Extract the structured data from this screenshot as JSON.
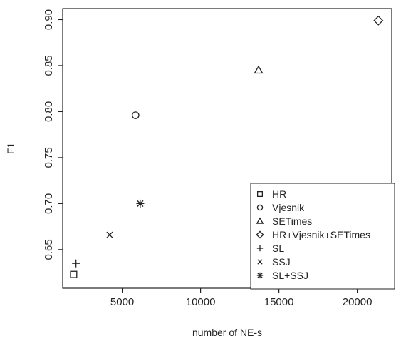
{
  "chart_data": {
    "type": "scatter",
    "title": "",
    "xlabel": "number of NE-s",
    "ylabel": "F1",
    "xlim": [
      1200,
      22200
    ],
    "ylim": [
      0.608,
      0.912
    ],
    "xticks": [
      5000,
      10000,
      15000,
      20000
    ],
    "xtick_labels": [
      "5000",
      "10000",
      "15000",
      "20000"
    ],
    "yticks": [
      0.65,
      0.7,
      0.75,
      0.8,
      0.85,
      0.9
    ],
    "ytick_labels": [
      "0.65",
      "0.70",
      "0.75",
      "0.80",
      "0.85",
      "0.90"
    ],
    "legend_position": "bottom-right",
    "grid": false,
    "series": [
      {
        "name": "HR",
        "marker": "square",
        "x": 1900,
        "y": 0.623
      },
      {
        "name": "Vjesnik",
        "marker": "circle",
        "x": 5850,
        "y": 0.796
      },
      {
        "name": "SETimes",
        "marker": "triangle",
        "x": 13700,
        "y": 0.845
      },
      {
        "name": "HR+Vjesnik+SETimes",
        "marker": "diamond",
        "x": 21350,
        "y": 0.899
      },
      {
        "name": "SL",
        "marker": "plus",
        "x": 2050,
        "y": 0.635
      },
      {
        "name": "SSJ",
        "marker": "cross",
        "x": 4200,
        "y": 0.666
      },
      {
        "name": "SL+SSJ",
        "marker": "asterisk",
        "x": 6150,
        "y": 0.7
      }
    ]
  }
}
